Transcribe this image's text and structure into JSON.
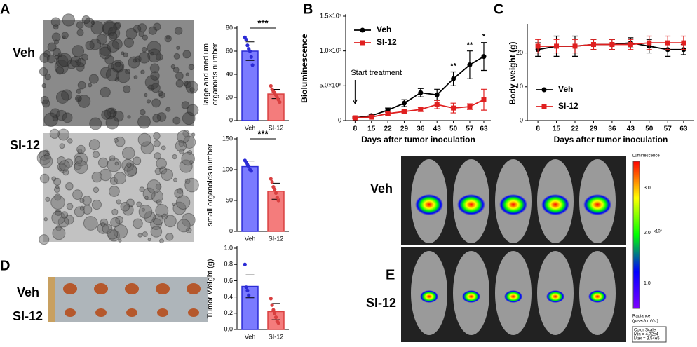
{
  "panels": [
    "A",
    "B",
    "C",
    "D",
    "E"
  ],
  "images": {
    "a_labels": [
      "Veh",
      "SI-12"
    ],
    "d_labels": [
      "Veh",
      "SI-12"
    ],
    "e_labels": [
      "Veh",
      "SI-12"
    ],
    "colorbar": {
      "title": "Luminescence",
      "ticks": [
        "3.0",
        "2.0",
        "1.0"
      ],
      "exponent": "x10⁵",
      "unit_label": "Radiance",
      "unit": "(p/sec/cm²/sr)",
      "scale": [
        "Color Scale",
        "Min = 4.72e4",
        "Max = 3.54e5"
      ]
    }
  },
  "chart_data": [
    {
      "type": "bar",
      "ylabel": [
        "large and medium",
        "organoids number"
      ],
      "categories": [
        "Veh",
        "SI-12"
      ],
      "values": [
        60,
        23
      ],
      "errors": [
        8,
        4
      ],
      "points": [
        [
          72,
          70,
          65,
          62,
          60,
          55,
          48
        ],
        [
          30,
          27,
          25,
          24,
          22,
          20,
          18,
          16
        ]
      ],
      "colors": [
        "#7b7bff",
        "#f47c7c"
      ],
      "edge_colors": [
        "#2b2bd6",
        "#d94040"
      ],
      "ylim": [
        0,
        80
      ],
      "yticks": [
        0,
        20,
        40,
        60,
        80
      ],
      "annotation": "***"
    },
    {
      "type": "bar",
      "ylabel": [
        "small organoids number"
      ],
      "categories": [
        "Veh",
        "SI-12"
      ],
      "values": [
        105,
        65
      ],
      "errors": [
        9,
        13
      ],
      "points": [
        [
          115,
          112,
          108,
          105,
          100,
          98
        ],
        [
          85,
          80,
          72,
          68,
          62,
          55,
          50
        ]
      ],
      "colors": [
        "#7b7bff",
        "#f47c7c"
      ],
      "edge_colors": [
        "#2b2bd6",
        "#d94040"
      ],
      "ylim": [
        0,
        150
      ],
      "yticks": [
        0,
        50,
        100,
        150
      ],
      "annotation": "***"
    },
    {
      "type": "bar",
      "ylabel": [
        "Tumor Weight (g)"
      ],
      "categories": [
        "Veh",
        "SI-12"
      ],
      "values": [
        0.53,
        0.22
      ],
      "errors": [
        0.14,
        0.1
      ],
      "points": [
        [
          0.8,
          0.52,
          0.48,
          0.42
        ],
        [
          0.38,
          0.3,
          0.24,
          0.2,
          0.15,
          0.1,
          0.08
        ]
      ],
      "colors": [
        "#7b7bff",
        "#f47c7c"
      ],
      "edge_colors": [
        "#2b2bd6",
        "#d94040"
      ],
      "ylim": [
        0,
        1.0
      ],
      "yticks": [
        {
          "value": 0,
          "label": "0.0"
        },
        0.2,
        0.4,
        0.6,
        0.8,
        {
          "value": 1,
          "label": "1.0"
        }
      ]
    },
    {
      "type": "line",
      "ylabel": "Bioluminescence",
      "xlabel": "Days after tumor inoculation",
      "x": [
        8,
        15,
        22,
        29,
        36,
        43,
        50,
        57,
        63
      ],
      "xlim": [
        4,
        66
      ],
      "xticks": [
        8,
        15,
        22,
        29,
        36,
        43,
        50,
        57,
        63
      ],
      "ylim": [
        0,
        15000000
      ],
      "yticks": [
        0,
        {
          "value": 5000000,
          "label": "5.0×10⁶"
        },
        {
          "value": 10000000,
          "label": "1.0×10⁷"
        },
        {
          "value": 15000000,
          "label": "1.5×10⁷"
        }
      ],
      "legend": "upper left",
      "series": [
        {
          "name": "Veh",
          "color": "#000000",
          "marker": "circle",
          "values": [
            400000,
            700000,
            1500000,
            2500000,
            4000000,
            3700000,
            6000000,
            8000000,
            9200000
          ],
          "errors": [
            100000,
            200000,
            300000,
            500000,
            600000,
            800000,
            1000000,
            2000000,
            2000000
          ]
        },
        {
          "name": "SI-12",
          "color": "#e02020",
          "marker": "square",
          "values": [
            400000,
            500000,
            1000000,
            1300000,
            1600000,
            2300000,
            1800000,
            2000000,
            3000000
          ],
          "errors": [
            100000,
            100000,
            200000,
            200000,
            300000,
            600000,
            700000,
            400000,
            1500000
          ]
        }
      ],
      "annotations": [
        {
          "x": 50,
          "text": "**"
        },
        {
          "x": 57,
          "text": "**"
        },
        {
          "x": 63,
          "text": "*"
        }
      ],
      "start_annotation": {
        "x": 8,
        "text": "Start treatment"
      }
    },
    {
      "type": "line",
      "ylabel": "Body weight (g)",
      "xlabel": "Days after tumor inoculation",
      "x": [
        8,
        15,
        22,
        29,
        36,
        43,
        50,
        57,
        63
      ],
      "xlim": [
        4,
        67
      ],
      "xticks": [
        8,
        15,
        22,
        29,
        36,
        43,
        50,
        57,
        63
      ],
      "ylim": [
        0,
        28
      ],
      "yticks": [
        0,
        10,
        20
      ],
      "legend": "lower left",
      "series": [
        {
          "name": "Veh",
          "color": "#000000",
          "marker": "circle",
          "values": [
            21,
            22,
            22,
            22.5,
            22.5,
            23,
            22,
            21,
            21
          ],
          "errors": [
            2,
            3,
            3,
            1.5,
            1.5,
            1.5,
            2,
            2,
            1.5
          ]
        },
        {
          "name": "SI-12",
          "color": "#e02020",
          "marker": "square",
          "values": [
            22,
            22,
            22,
            22.5,
            22.5,
            22.5,
            23,
            23,
            23
          ],
          "errors": [
            2,
            2,
            2,
            1.5,
            1.5,
            1.5,
            2,
            2,
            2
          ]
        }
      ]
    }
  ]
}
